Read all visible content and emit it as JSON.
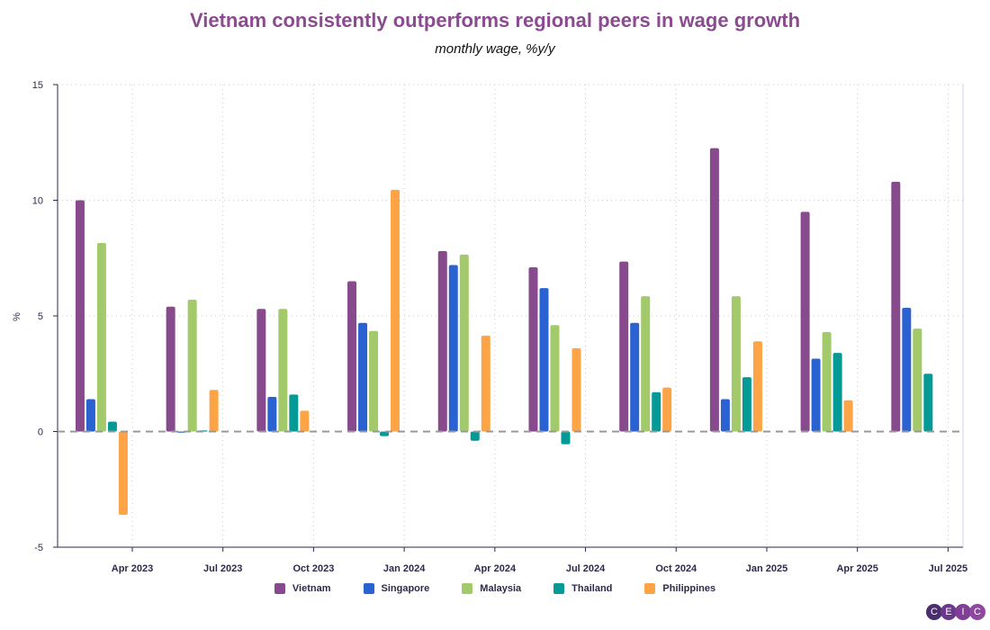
{
  "chart_data": {
    "type": "bar",
    "title": "Vietnam consistently outperforms regional peers in wage growth",
    "subtitle": "monthly wage, %y/y",
    "ylabel": "%",
    "xlabel": "",
    "ylim": [
      -5,
      15
    ],
    "yticks": [
      "15",
      "10",
      "5",
      "0",
      "-5"
    ],
    "ytick_values": [
      15,
      10,
      5,
      0,
      -5
    ],
    "xtick_labels": [
      "Apr 2023",
      "Jul 2023",
      "Oct 2023",
      "Jan 2024",
      "Apr 2024",
      "Jul 2024",
      "Oct 2024",
      "Jan 2025",
      "Apr 2025",
      "Jul 2025"
    ],
    "categories": [
      "Mar 2023",
      "Jun 2023",
      "Sep 2023",
      "Dec 2023",
      "Mar 2024",
      "Jun 2024",
      "Sep 2024",
      "Dec 2024",
      "Mar 2025",
      "Jun 2025"
    ],
    "grid": true,
    "legend_position": "bottom",
    "series": [
      {
        "name": "Vietnam",
        "color": "#874a8c",
        "values": [
          10.0,
          5.4,
          5.3,
          6.5,
          7.8,
          7.1,
          7.35,
          12.25,
          9.5,
          10.8
        ]
      },
      {
        "name": "Singapore",
        "color": "#2b62d1",
        "values": [
          1.4,
          -0.05,
          1.5,
          4.7,
          7.2,
          6.2,
          4.7,
          1.4,
          3.15,
          5.35
        ]
      },
      {
        "name": "Malaysia",
        "color": "#a2c96a",
        "values": [
          8.15,
          5.7,
          5.3,
          4.35,
          7.65,
          4.6,
          5.85,
          5.85,
          4.3,
          4.45
        ]
      },
      {
        "name": "Thailand",
        "color": "#069a96",
        "values": [
          0.43,
          0.05,
          1.6,
          -0.2,
          -0.4,
          -0.55,
          1.7,
          2.35,
          3.4,
          2.5
        ]
      },
      {
        "name": "Philippines",
        "color": "#fda446",
        "values": [
          -3.6,
          1.8,
          0.9,
          10.45,
          4.15,
          3.6,
          1.9,
          3.9,
          1.35,
          null
        ]
      }
    ]
  },
  "logo": {
    "letters": [
      "C",
      "E",
      "I",
      "C"
    ]
  }
}
